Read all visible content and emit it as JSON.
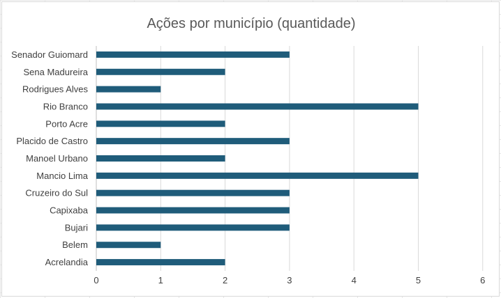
{
  "chart_data": {
    "type": "bar",
    "orientation": "horizontal",
    "title": "Ações por município (quantidade)",
    "categories": [
      "Senador Guiomard",
      "Sena Madureira",
      "Rodrigues Alves",
      "Rio Branco",
      "Porto Acre",
      "Placido de Castro",
      "Manoel Urbano",
      "Mancio Lima",
      "Cruzeiro do Sul",
      "Capixaba",
      "Bujari",
      "Belem",
      "Acrelandia"
    ],
    "values": [
      3,
      2,
      1,
      5,
      2,
      3,
      2,
      5,
      3,
      3,
      3,
      1,
      2
    ],
    "xlim": [
      0,
      6
    ],
    "xticks": [
      "0",
      "1",
      "2",
      "3",
      "4",
      "5",
      "6"
    ],
    "xlabel": "",
    "ylabel": "",
    "grid": "vertical",
    "legend": "none",
    "bar_color": "#1f5c7a"
  }
}
